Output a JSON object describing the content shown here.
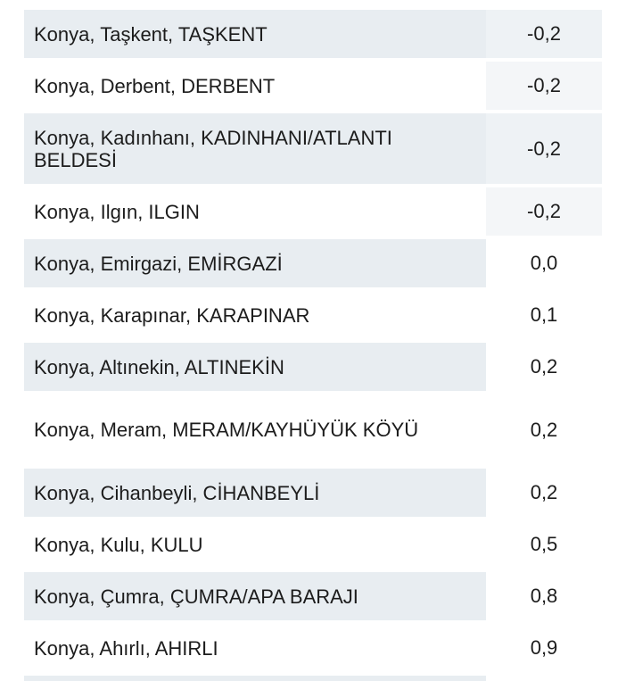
{
  "rows": [
    {
      "location": "Konya, Taşkent, TAŞKENT",
      "value": "-0,2"
    },
    {
      "location": "Konya, Derbent, DERBENT",
      "value": "-0,2"
    },
    {
      "location": "Konya, Kadınhanı, KADINHANI/ATLANTI BELDESİ",
      "value": "-0,2"
    },
    {
      "location": "Konya, Ilgın, ILGIN",
      "value": "-0,2"
    },
    {
      "location": "Konya, Emirgazi, EMİRGAZİ",
      "value": "0,0"
    },
    {
      "location": "Konya, Karapınar, KARAPINAR",
      "value": "0,1"
    },
    {
      "location": "Konya, Altınekin, ALTINEKİN",
      "value": "0,2"
    },
    {
      "location": "Konya, Meram, MERAM/KAYHÜYÜK KÖYÜ",
      "value": "0,2"
    },
    {
      "location": "Konya, Cihanbeyli, CİHANBEYLİ",
      "value": "0,2"
    },
    {
      "location": "Konya, Kulu, KULU",
      "value": "0,5"
    },
    {
      "location": "Konya, Çumra, ÇUMRA/APA BARAJI",
      "value": "0,8"
    },
    {
      "location": "Konya, Ahırlı, AHIRLI",
      "value": "0,9"
    }
  ]
}
